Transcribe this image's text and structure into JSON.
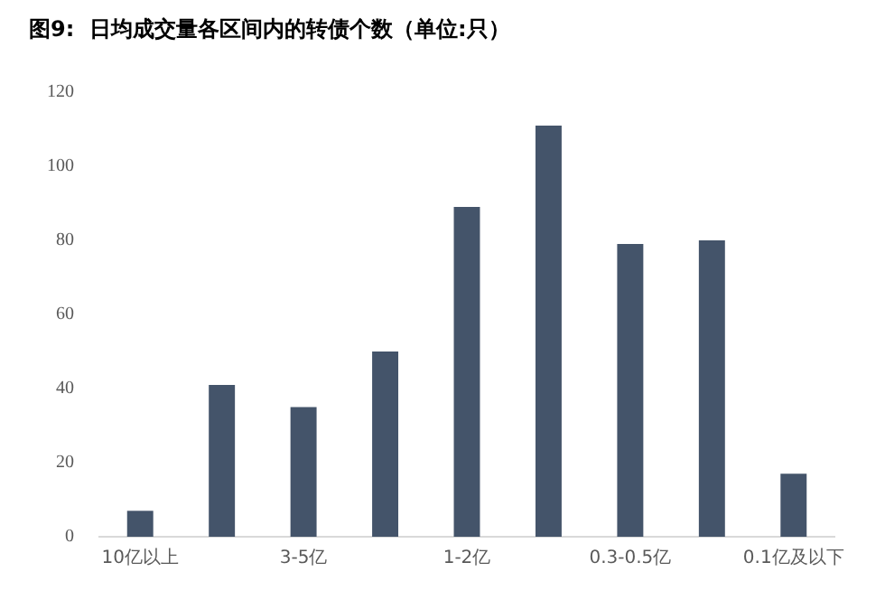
{
  "chart_data": {
    "type": "bar",
    "title": "图9:  日均成交量各区间内的转债个数（单位:只）",
    "categories": [
      "10亿以上",
      null,
      "3-5亿",
      null,
      "1-2亿",
      null,
      "0.3-0.5亿",
      null,
      "0.1亿及以下"
    ],
    "values": [
      7,
      41,
      35,
      50,
      89,
      111,
      79,
      80,
      17
    ],
    "color": "#44546a",
    "ylim": [
      0,
      120
    ],
    "yticks": [
      0,
      20,
      40,
      60,
      80,
      100,
      120
    ],
    "grid": false,
    "legend": false
  }
}
